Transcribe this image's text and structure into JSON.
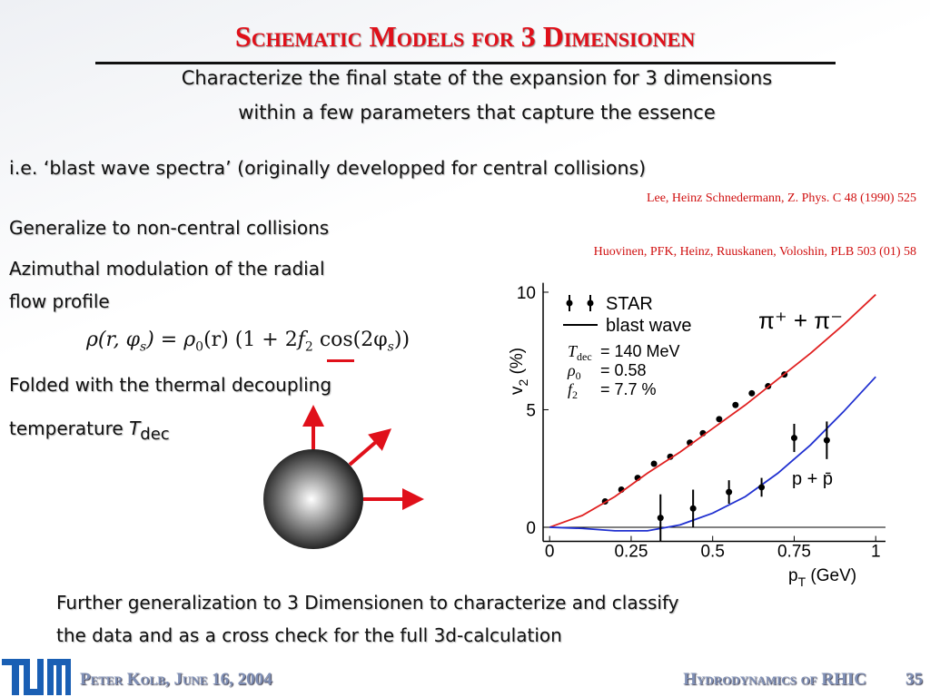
{
  "title": "Schematic Models for 3 Dimensionen",
  "intro": [
    "Characterize the final state of the expansion for 3 dimensions",
    "within a few parameters that capture the essence"
  ],
  "blast_wave_line": "i.e. ‘blast wave spectra’ (originally developped for central collisions)",
  "references": [
    "Lee, Heinz Schnedermann, Z. Phys. C 48 (1990) 525",
    "Huovinen, PFK, Heinz, Ruuskanen, Voloshin, PLB 503 (01) 58"
  ],
  "bullets": [
    "Generalize to non-central collisions",
    "Azimuthal modulation of the radial",
    "flow profile",
    "Folded with the thermal decoupling"
  ],
  "temperature": {
    "text": "temperature ",
    "symbol": "T",
    "sub": "dec"
  },
  "formula": {
    "left": "ρ(r, φ",
    "left_sub": "s",
    "mid": ") = ρ",
    "mid_sub": "0",
    "rest": "(r) (1 + 2",
    "f": "f",
    "f_sub": "2",
    "end": " cos(2φ",
    "end_sub": "s",
    "close": "))"
  },
  "chart_data": {
    "type": "scatter",
    "xlabel": {
      "text": "p",
      "sub": "T",
      "unit": " (GeV)"
    },
    "ylabel": {
      "text": "v",
      "sub": "2",
      "unit": " (%)"
    },
    "xlim": [
      -0.02,
      1.03
    ],
    "ylim": [
      -0.6,
      10.4
    ],
    "xticks": [
      0,
      0.25,
      0.5,
      0.75,
      1
    ],
    "yticks": [
      0,
      5,
      10
    ],
    "series": [
      {
        "name": "STAR",
        "color": "#000000",
        "mode": "markers",
        "x": [
          0.17,
          0.22,
          0.27,
          0.32,
          0.37,
          0.43,
          0.47,
          0.52,
          0.57,
          0.62,
          0.67,
          0.72
        ],
        "values": [
          1.1,
          1.6,
          2.1,
          2.7,
          3.0,
          3.6,
          4.0,
          4.6,
          5.2,
          5.7,
          6.0,
          6.5
        ]
      },
      {
        "name": "blast wave",
        "color": "#e02020",
        "mode": "line",
        "x": [
          0,
          0.1,
          0.2,
          0.3,
          0.4,
          0.5,
          0.6,
          0.7,
          0.8,
          0.9,
          1.0
        ],
        "values": [
          0,
          0.5,
          1.3,
          2.3,
          3.2,
          4.2,
          5.2,
          6.3,
          7.4,
          8.6,
          9.9
        ]
      },
      {
        "color": "#2030d0",
        "mode": "line",
        "x": [
          0,
          0.1,
          0.2,
          0.3,
          0.4,
          0.5,
          0.6,
          0.7,
          0.8,
          0.9,
          1.0
        ],
        "values": [
          0,
          -0.05,
          -0.15,
          -0.15,
          0.1,
          0.6,
          1.3,
          2.3,
          3.5,
          4.9,
          6.4
        ]
      },
      {
        "color": "#000000",
        "mode": "markers",
        "x": [
          0.34,
          0.44,
          0.55,
          0.65,
          0.75,
          0.85
        ],
        "values": [
          0.4,
          0.8,
          1.5,
          1.7,
          3.8,
          3.7
        ],
        "errors": [
          1.0,
          0.8,
          0.5,
          0.4,
          0.6,
          0.8
        ]
      }
    ],
    "annotations": [
      "π⁺ + π⁻",
      "p + p̄"
    ],
    "parameters": [
      {
        "symbol": "T",
        "sub": "dec",
        "value": "= 140 MeV"
      },
      {
        "symbol": "ρ",
        "sub": "0",
        "value": "=  0.58"
      },
      {
        "symbol": "f",
        "sub": "2",
        "value": "=  7.7 %"
      }
    ]
  },
  "conclusion": [
    "Further generalization to 3 Dimensionen to characterize and classify",
    "the data and as a cross check for the full 3d-calculation"
  ],
  "footer": {
    "author": "Peter Kolb, June 16, 2004",
    "topic": "Hydrodynamics of RHIC",
    "page": "35"
  }
}
